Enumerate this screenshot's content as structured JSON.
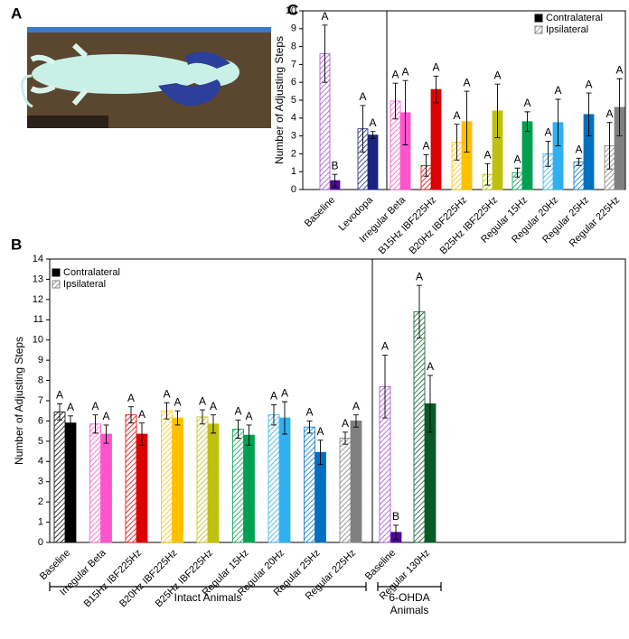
{
  "photo_panel": {
    "label": "A"
  },
  "chart_data": [
    {
      "type": "bar",
      "panel": "B",
      "y_label": "Number of Adjusting Steps",
      "ylim": [
        0,
        14
      ],
      "yticks": [
        0,
        1,
        2,
        3,
        4,
        5,
        6,
        7,
        8,
        9,
        10,
        11,
        12,
        13,
        14
      ],
      "legend": "upper left",
      "categories": [
        "Baseline",
        "Irregular Beta",
        "B15Hz IBF225Hz",
        "B20Hz IBF225Hz",
        "B25Hz IBF225Hz",
        "Regular 15Hz",
        "Regular 20Hz",
        "Regular 25Hz",
        "Regular 225Hz",
        "Baseline",
        "Regular 130Hz"
      ],
      "groups": [
        "Intact Animals",
        "6-OHDA Animals"
      ],
      "series": [
        {
          "name": "Contralateral",
          "pattern": "solid",
          "color": "#000000",
          "colors": [
            "#000000",
            "#ff55cc",
            "#dd0000",
            "#ffc000",
            "#c0c010",
            "#00a050",
            "#30b0f0",
            "#0070c0",
            "#808080",
            "#4b0a96",
            "#0a5a28"
          ],
          "values": [
            5.9,
            5.35,
            5.35,
            6.15,
            5.85,
            5.3,
            6.15,
            4.45,
            6.0,
            0.5,
            6.85
          ],
          "errors": [
            0.35,
            0.45,
            0.55,
            0.35,
            0.45,
            0.5,
            0.8,
            0.6,
            0.3,
            0.35,
            1.4
          ],
          "letters": [
            "A",
            "A",
            "A",
            "A",
            "A",
            "A",
            "A",
            "A",
            "A",
            "B",
            "A"
          ]
        },
        {
          "name": "Ipsilateral",
          "pattern": "hatched",
          "color": "#808080",
          "colors": [
            "#000000",
            "#ff55cc",
            "#dd0000",
            "#ffc000",
            "#c0c010",
            "#00a050",
            "#30b0f0",
            "#0070c0",
            "#808080",
            "#a050d0",
            "#0a5a28"
          ],
          "values": [
            6.45,
            5.85,
            6.3,
            6.5,
            6.2,
            5.6,
            6.3,
            5.7,
            5.15,
            7.7,
            11.4
          ],
          "errors": [
            0.4,
            0.45,
            0.4,
            0.4,
            0.35,
            0.45,
            0.5,
            0.3,
            0.3,
            1.55,
            1.3
          ],
          "letters": [
            "A",
            "A",
            "A",
            "A",
            "A",
            "A",
            "A",
            "A",
            "A",
            "A",
            "A"
          ]
        }
      ]
    },
    {
      "type": "bar",
      "panel": "C",
      "y_label": "Number of Adjusting Steps",
      "ylim": [
        0,
        10
      ],
      "yticks": [
        0,
        1,
        2,
        3,
        4,
        5,
        6,
        7,
        8,
        9,
        10
      ],
      "legend": "upper right",
      "categories": [
        "Baseline",
        "Levodopa",
        "Irregular Beta",
        "B15Hz IBF225Hz",
        "B20Hz IBF225Hz",
        "B25Hz IBF225Hz",
        "Regular 15Hz",
        "Regular 20Hz",
        "Regular 25Hz",
        "Regular 225Hz"
      ],
      "series": [
        {
          "name": "Contralateral",
          "pattern": "solid",
          "color": "#000000",
          "colors": [
            "#4b0a96",
            "#1a237e",
            "#ff55cc",
            "#dd0000",
            "#ffc000",
            "#c0c010",
            "#00a050",
            "#30b0f0",
            "#0070c0",
            "#808080"
          ],
          "values": [
            0.5,
            3.05,
            4.3,
            5.6,
            3.8,
            4.4,
            3.8,
            3.75,
            4.2,
            4.6
          ],
          "errors": [
            0.35,
            0.2,
            1.8,
            0.75,
            1.7,
            1.5,
            0.55,
            1.3,
            1.2,
            1.6
          ],
          "letters": [
            "B",
            "A",
            "A",
            "A",
            "A",
            "A",
            "A",
            "A",
            "A",
            "A"
          ]
        },
        {
          "name": "Ipsilateral",
          "pattern": "hatched",
          "color": "#808080",
          "colors": [
            "#a050d0",
            "#1a237e",
            "#ff55cc",
            "#dd0000",
            "#ffc000",
            "#c0c010",
            "#00a050",
            "#30b0f0",
            "#0070c0",
            "#808080"
          ],
          "values": [
            7.6,
            3.4,
            4.95,
            1.35,
            2.65,
            0.85,
            0.95,
            2.0,
            1.55,
            2.45
          ],
          "errors": [
            1.6,
            1.3,
            1.0,
            0.6,
            1.0,
            0.6,
            0.25,
            0.7,
            0.2,
            1.3
          ],
          "letters": [
            "A",
            "A",
            "A",
            "A",
            "A",
            "A",
            "A",
            "A",
            "A",
            "A"
          ]
        }
      ]
    }
  ]
}
